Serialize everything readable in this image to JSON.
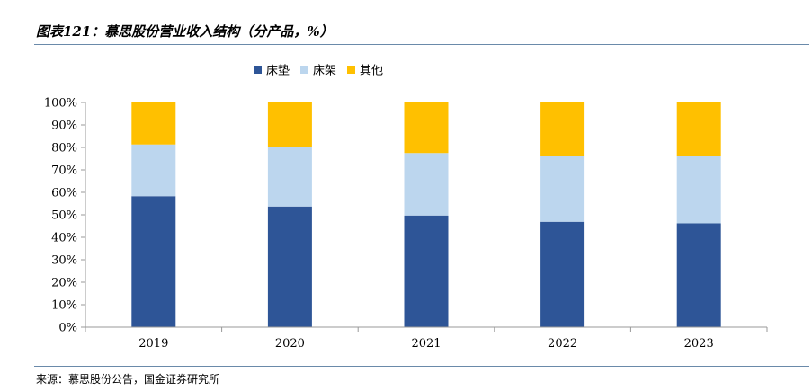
{
  "figure": {
    "title": "图表121：慕思股份营业收入结构（分产品，%）",
    "source": "来源：慕思股份公告，国金证券研究所"
  },
  "chart_data": {
    "type": "bar",
    "stacked": true,
    "categories": [
      "2019",
      "2020",
      "2021",
      "2022",
      "2023"
    ],
    "series": [
      {
        "name": "床垫",
        "values": [
          58.3,
          53.7,
          49.7,
          46.9,
          46.2
        ],
        "color": "#2e5597"
      },
      {
        "name": "床架",
        "values": [
          23.0,
          26.5,
          27.8,
          29.5,
          30.0
        ],
        "color": "#bcd6ee"
      },
      {
        "name": "其他",
        "values": [
          18.7,
          19.8,
          22.5,
          23.6,
          23.8
        ],
        "color": "#ffc000"
      }
    ],
    "ylim": [
      0,
      100
    ],
    "yticks": [
      0,
      10,
      20,
      30,
      40,
      50,
      60,
      70,
      80,
      90,
      100
    ],
    "ytick_labels": [
      "0%",
      "10%",
      "20%",
      "30%",
      "40%",
      "50%",
      "60%",
      "70%",
      "80%",
      "90%",
      "100%"
    ],
    "legend_position": "top-center",
    "grid": false,
    "axis_color": "#999999"
  }
}
